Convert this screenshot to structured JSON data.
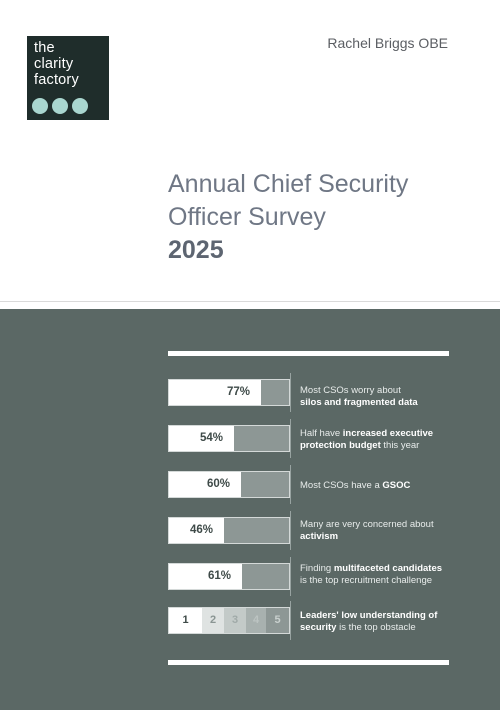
{
  "logo": {
    "lines": [
      "the",
      "clarity",
      "factory"
    ]
  },
  "author": "Rachel Briggs OBE",
  "title": {
    "line1": "Annual Chief Security",
    "line2": "Officer Survey",
    "year": "2025"
  },
  "stats": [
    {
      "pct_label": "77%",
      "value": 77,
      "text_pre": "Most CSOs worry about",
      "text_bold": "silos and fragmented data",
      "text_post": ""
    },
    {
      "pct_label": "54%",
      "value": 54,
      "text_pre": "Half have",
      "text_bold": "increased executive protection budget",
      "text_post": "this year"
    },
    {
      "pct_label": "60%",
      "value": 60,
      "text_pre": "Most CSOs have a",
      "text_bold": "GSOC",
      "text_post": ""
    },
    {
      "pct_label": "46%",
      "value": 46,
      "text_pre": "Many are very concerned about",
      "text_bold": "activism",
      "text_post": ""
    },
    {
      "pct_label": "61%",
      "value": 61,
      "text_pre": "Finding",
      "text_bold": "multifaceted candidates",
      "text_post": "is the top recruitment challenge"
    }
  ],
  "rank": {
    "numbers": [
      "1",
      "2",
      "3",
      "4",
      "5"
    ],
    "text_bold": "Leaders' low understanding of security",
    "text_post": "is the top obstacle"
  },
  "colors": {
    "panel": "#5b6865",
    "logo_bg": "#1f2d2b",
    "logo_dots": "#a9d6cf",
    "title": "#6f7785"
  }
}
